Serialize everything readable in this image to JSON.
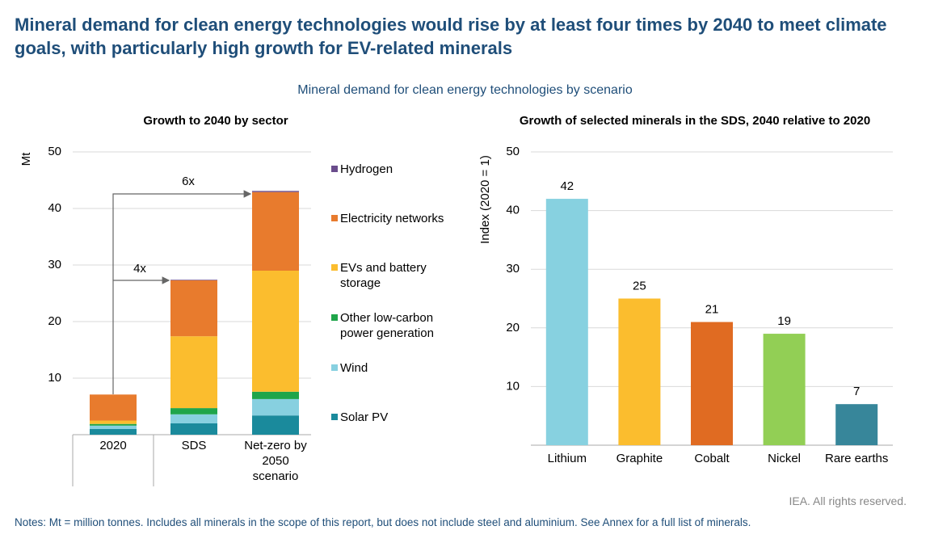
{
  "title": "Mineral demand for clean energy technologies would rise by at least four times by 2040 to meet climate goals, with particularly high growth for EV-related minerals",
  "subtitle": "Mineral demand for clean energy technologies by scenario",
  "credit": "IEA. All rights reserved.",
  "notes": "Notes: Mt = million tonnes. Includes all minerals in the scope of this report, but does not include steel and aluminium. See Annex for a full list of minerals.",
  "chart_data": [
    {
      "type": "stacked-bar",
      "title": "Growth to 2040 by sector",
      "y_label": "Mt",
      "categories": [
        "2020",
        "SDS",
        "Net-zero by 2050 scenario"
      ],
      "series": [
        {
          "name": "Solar PV",
          "color": "#1a8a9c",
          "values": [
            1.0,
            2.0,
            3.4
          ]
        },
        {
          "name": "Wind",
          "color": "#87d0e0",
          "values": [
            0.6,
            1.6,
            2.9
          ]
        },
        {
          "name": "Other low-carbon power generation",
          "color": "#1fa54a",
          "values": [
            0.3,
            1.1,
            1.3
          ]
        },
        {
          "name": "EVs and battery storage",
          "color": "#fbbd2e",
          "values": [
            0.6,
            12.7,
            21.4
          ]
        },
        {
          "name": "Electricity networks",
          "color": "#e87b2d",
          "values": [
            4.6,
            9.9,
            13.9
          ]
        },
        {
          "name": "Hydrogen",
          "color": "#6a4c8c",
          "values": [
            0,
            0.1,
            0.2
          ]
        }
      ],
      "annotations": [
        "4x",
        "6x"
      ],
      "ylim": [
        0,
        50
      ],
      "yticks": [
        10,
        20,
        30,
        40,
        50
      ],
      "grid": true
    },
    {
      "type": "bar",
      "title": "Growth of selected minerals in the SDS, 2040 relative to 2020",
      "y_label": "Index (2020 = 1)",
      "categories": [
        "Lithium",
        "Graphite",
        "Cobalt",
        "Nickel",
        "Rare earths"
      ],
      "values": [
        42,
        25,
        21,
        19,
        7
      ],
      "colors": [
        "#87d1e0",
        "#fbbd2e",
        "#e06b22",
        "#92cf55",
        "#37869a"
      ],
      "ylim": [
        0,
        50
      ],
      "yticks": [
        10,
        20,
        30,
        40,
        50
      ],
      "grid": true
    }
  ]
}
